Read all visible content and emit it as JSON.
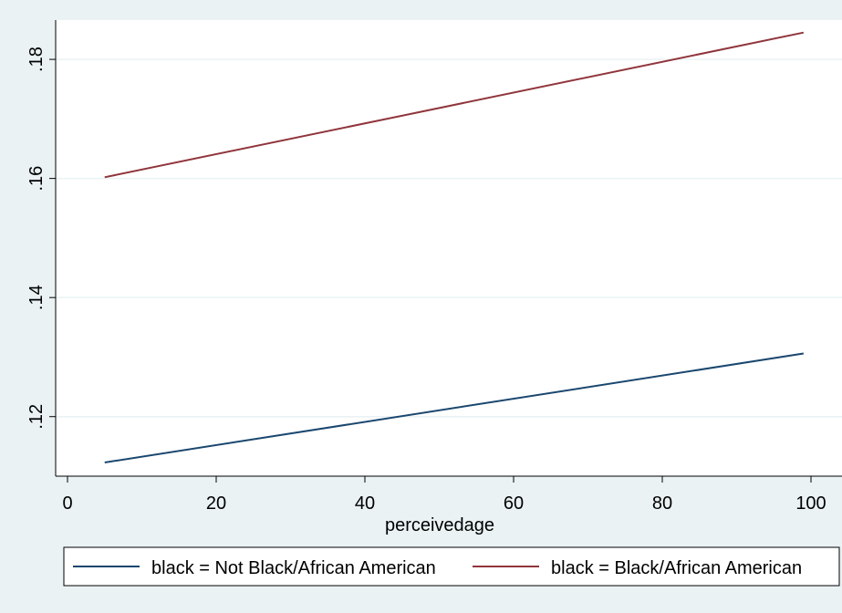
{
  "chart_data": {
    "type": "line",
    "title": "",
    "xlabel": "perceivedage",
    "ylabel": "",
    "xlim": [
      0,
      100
    ],
    "ylim": [
      0.11,
      0.1866
    ],
    "x_ticks": [
      0,
      20,
      40,
      60,
      80,
      100
    ],
    "x_tick_labels": [
      "0",
      "20",
      "40",
      "60",
      "80",
      "100"
    ],
    "y_ticks": [
      0.12,
      0.14,
      0.16,
      0.18
    ],
    "y_tick_labels": [
      ".12",
      ".14",
      ".16",
      ".18"
    ],
    "grid": "horizontal",
    "legend_position": "bottom",
    "series": [
      {
        "name": "black = Not Black/African American",
        "color": "#1a476f",
        "x": [
          5,
          99
        ],
        "y": [
          0.1123,
          0.1306
        ]
      },
      {
        "name": "black = Black/African American",
        "color": "#90353b",
        "x": [
          5,
          99
        ],
        "y": [
          0.1602,
          0.1845
        ]
      }
    ]
  }
}
